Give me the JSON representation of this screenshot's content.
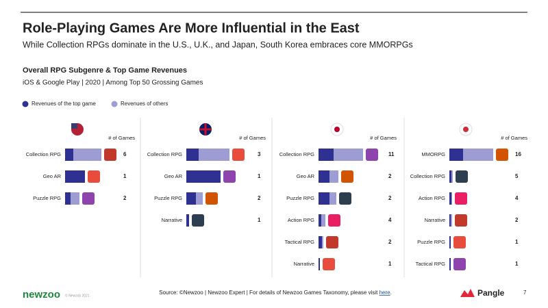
{
  "header": {
    "title": "Role-Playing Games Are More Influential in the East",
    "subtitle": "While Collection RPGs dominate in the U.S., U.K., and Japan, South Korea embraces core MMORPGs",
    "chart_title": "Overall RPG Subgenre & Top Game Revenues",
    "chart_subtitle": "iOS & Google Play | 2020 | Among Top 50 Grossing Games"
  },
  "legend": [
    {
      "name": "Revenues of the top game",
      "color": "#2e3192"
    },
    {
      "name": "Revenues of others",
      "color": "#9d9dd4"
    }
  ],
  "chart_data": [
    {
      "type": "bar",
      "stacked": true,
      "column_label": "# of Games",
      "categories": [
        "Collection RPG",
        "Geo AR",
        "Puzzle RPG"
      ],
      "series": [
        {
          "values": [
            12,
            29,
            8
          ]
        },
        {
          "values": [
            41,
            0,
            13
          ]
        }
      ],
      "games": [
        6,
        1,
        2
      ]
    },
    {
      "type": "bar",
      "stacked": true,
      "column_label": "# of Games",
      "categories": [
        "Collection RPG",
        "Geo AR",
        "Puzzle RPG",
        "Narrative"
      ],
      "series": [
        {
          "values": [
            18,
            50,
            14,
            4
          ]
        },
        {
          "values": [
            45,
            0,
            10,
            0
          ]
        }
      ],
      "games": [
        3,
        1,
        2,
        1
      ]
    },
    {
      "type": "bar",
      "stacked": true,
      "column_label": "# of Games",
      "categories": [
        "Collection RPG",
        "Geo AR",
        "Puzzle RPG",
        "Action RPG",
        "Tactical RPG",
        "Narrative"
      ],
      "series": [
        {
          "values": [
            22,
            16,
            16,
            4,
            5,
            2
          ]
        },
        {
          "values": [
            43,
            13,
            10,
            6,
            2,
            0
          ]
        }
      ],
      "games": [
        11,
        2,
        2,
        4,
        2,
        1
      ]
    },
    {
      "type": "bar",
      "stacked": true,
      "column_label": "# of Games",
      "categories": [
        "MMORPG",
        "Collection RPG",
        "Action RPG",
        "Narrative",
        "Puzzle RPG",
        "Tactical RPG"
      ],
      "series": [
        {
          "values": [
            20,
            3,
            3,
            2,
            2,
            2
          ]
        },
        {
          "values": [
            44,
            2,
            1,
            2,
            0,
            0
          ]
        }
      ],
      "games": [
        16,
        5,
        4,
        2,
        1,
        1
      ]
    }
  ],
  "footer": {
    "brand": "newzoo",
    "copyright": "© Newzoo 2021",
    "source": "Source: ©Newzoo | Newzoo Expert | For details of Newzoo Games Taxonomy, please visit ",
    "source_link": "here",
    "source_end": ".",
    "partner": "Pangle",
    "page": "7"
  }
}
